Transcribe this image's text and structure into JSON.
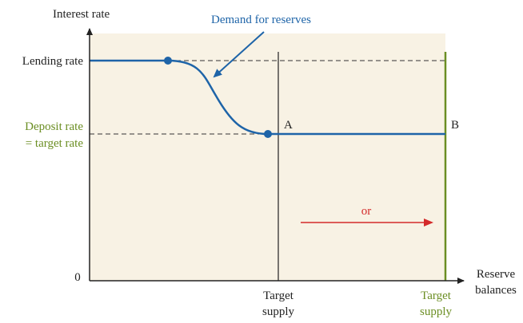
{
  "axes": {
    "y_label": "Interest rate",
    "x_label": [
      "Reserve",
      "balances"
    ],
    "origin": "0"
  },
  "rates": {
    "lending": "Lending rate",
    "deposit": [
      "Deposit rate",
      "= target rate"
    ]
  },
  "curve_label": "Demand for reserves",
  "points": {
    "a": "A",
    "b": "B"
  },
  "shift_label": "or",
  "supply_old": [
    "Target",
    "supply"
  ],
  "supply_new": [
    "Target",
    "supply"
  ]
}
